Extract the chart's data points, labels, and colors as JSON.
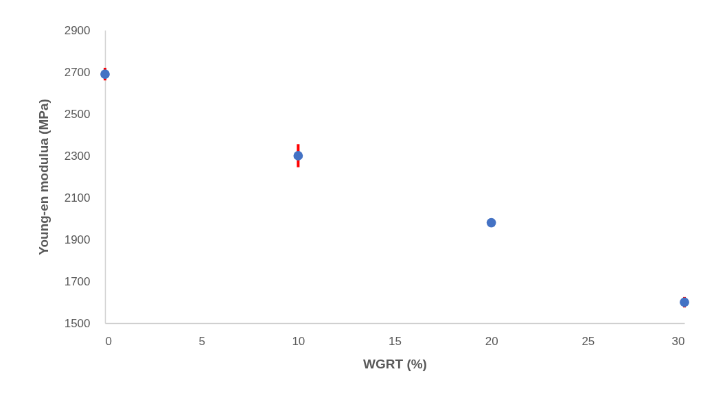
{
  "chart_data": {
    "type": "scatter",
    "xlabel": "WGRT (%)",
    "ylabel": "Young-en modulua (MPa)",
    "x": [
      0,
      10,
      20,
      30
    ],
    "series": [
      {
        "color": "#4472c4",
        "values": [
          2690,
          2300,
          1980,
          1600
        ],
        "errors": [
          30,
          55,
          null,
          25
        ]
      }
    ],
    "xlim": [
      0,
      30
    ],
    "xticks": [
      0,
      5,
      10,
      15,
      20,
      25,
      30
    ],
    "ylim": [
      1500,
      2900
    ],
    "yticks": [
      1500,
      1700,
      1900,
      2100,
      2300,
      2500,
      2700,
      2900
    ],
    "grid": false,
    "legend": false,
    "marker": "circle"
  }
}
